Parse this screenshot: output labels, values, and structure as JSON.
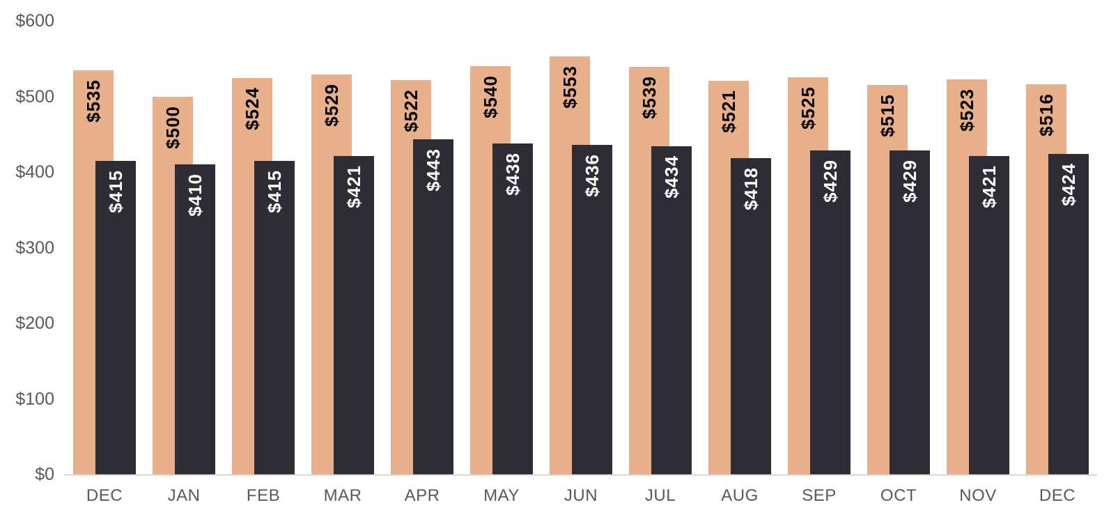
{
  "chart_data": {
    "type": "bar",
    "title": "",
    "xlabel": "",
    "ylabel": "",
    "categories": [
      "DEC",
      "JAN",
      "FEB",
      "MAR",
      "APR",
      "MAY",
      "JUN",
      "JUL",
      "AUG",
      "SEP",
      "OCT",
      "NOV",
      "DEC"
    ],
    "series": [
      {
        "name": "tan-series",
        "color": "#e8af8b",
        "label_color": "#000000",
        "values": [
          535,
          500,
          524,
          529,
          522,
          540,
          553,
          539,
          521,
          525,
          515,
          523,
          516
        ],
        "labels": [
          "$535",
          "$500",
          "$524",
          "$529",
          "$522",
          "$540",
          "$553",
          "$539",
          "$521",
          "$525",
          "$515",
          "$523",
          "$516"
        ]
      },
      {
        "name": "dark-series",
        "color": "#2e2d36",
        "label_color": "#ffffff",
        "values": [
          415,
          410,
          415,
          421,
          443,
          438,
          436,
          434,
          418,
          429,
          429,
          421,
          424
        ],
        "labels": [
          "$415",
          "$410",
          "$415",
          "$421",
          "$443",
          "$438",
          "$436",
          "$434",
          "$418",
          "$429",
          "$429",
          "$421",
          "$424"
        ]
      }
    ],
    "value_prefix": "$",
    "ylim": [
      0,
      600
    ],
    "y_tick_values": [
      0,
      100,
      200,
      300,
      400,
      500,
      600
    ],
    "y_tick_labels": [
      "$0",
      "$100",
      "$200",
      "$300",
      "$400",
      "$500",
      "$600"
    ],
    "grid": false,
    "legend": "none",
    "colors": {
      "axis_text": "#595959",
      "axis_line": "#d9d9d9",
      "background": "#ffffff"
    }
  }
}
